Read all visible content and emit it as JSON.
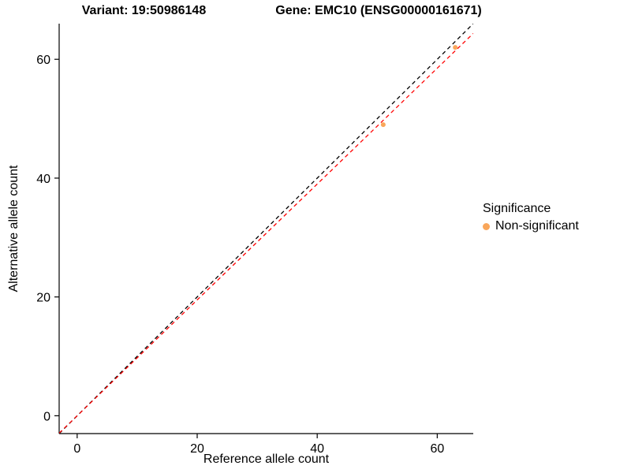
{
  "chart_data": {
    "type": "scatter",
    "title_left": "Variant: 19:50986148",
    "title_right": "Gene: EMC10 (ENSG00000161671)",
    "xlabel": "Reference allele count",
    "ylabel": "Alternative allele count",
    "xlim": [
      -3,
      66
    ],
    "ylim": [
      -3,
      66
    ],
    "xticks": [
      0,
      20,
      40,
      60
    ],
    "yticks": [
      0,
      20,
      40,
      60
    ],
    "grid": false,
    "point_color": "#F9A65A",
    "points": [
      {
        "x": 51,
        "y": 49,
        "series": "Non-significant"
      },
      {
        "x": 63,
        "y": 62,
        "series": "Non-significant"
      }
    ],
    "lines": [
      {
        "name": "identity",
        "slope": 1,
        "intercept": 0,
        "color": "#000000",
        "style": "dashed"
      },
      {
        "name": "fit",
        "slope": 0.975,
        "intercept": 0,
        "color": "#FF0000",
        "style": "dashed"
      }
    ],
    "legend": {
      "title": "Significance",
      "position": "right",
      "entries": [
        {
          "label": "Non-significant",
          "color": "#F9A65A"
        }
      ]
    }
  }
}
